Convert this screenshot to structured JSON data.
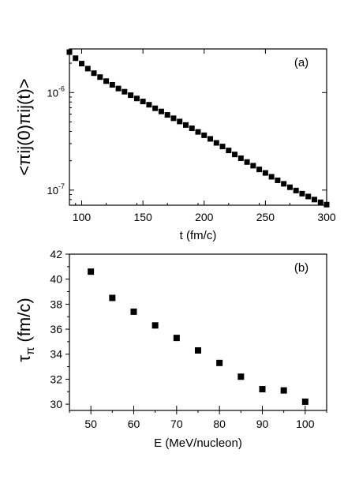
{
  "chart_data": [
    {
      "type": "scatter",
      "panel_label": "(a)",
      "xlabel": "t (fm/c)",
      "ylabel": "<πij(0)πij(t)>",
      "xlim": [
        90,
        300
      ],
      "ylim": [
        7e-08,
        2.8e-06
      ],
      "y_scale": "log",
      "x_ticks": [
        100,
        150,
        200,
        250,
        300
      ],
      "y_tick_labels": [
        {
          "value": 1e-06,
          "mantissa": "10",
          "exponent": "-6"
        },
        {
          "value": 1e-07,
          "mantissa": "10",
          "exponent": "-7"
        }
      ],
      "grid": false,
      "legend": "none",
      "marker_color": "#000000",
      "series": [
        {
          "x": [
            90,
            95,
            100,
            105,
            110,
            115,
            120,
            125,
            130,
            135,
            140,
            145,
            150,
            155,
            160,
            165,
            170,
            175,
            180,
            185,
            190,
            195,
            200,
            205,
            210,
            215,
            220,
            225,
            230,
            235,
            240,
            245,
            250,
            255,
            260,
            265,
            270,
            275,
            280,
            285,
            290,
            295,
            300
          ],
          "y": [
            2.6e-06,
            2.25e-06,
            1.98e-06,
            1.76e-06,
            1.58e-06,
            1.44e-06,
            1.31e-06,
            1.2e-06,
            1.1e-06,
            1.02e-06,
            9.4e-07,
            8.7e-07,
            8.1e-07,
            7.5e-07,
            6.9e-07,
            6.4e-07,
            5.9e-07,
            5.45e-07,
            5.05e-07,
            4.65e-07,
            4.3e-07,
            3.95e-07,
            3.65e-07,
            3.35e-07,
            3.05e-07,
            2.8e-07,
            2.55e-07,
            2.32e-07,
            2.12e-07,
            1.94e-07,
            1.78e-07,
            1.63e-07,
            1.5e-07,
            1.37e-07,
            1.26e-07,
            1.16e-07,
            1.07e-07,
            9.9e-08,
            9.2e-08,
            8.6e-08,
            8e-08,
            7.5e-08,
            7.1e-08
          ]
        }
      ]
    },
    {
      "type": "scatter",
      "panel_label": "(b)",
      "xlabel": "E (MeV/nucleon)",
      "ylabel": "τπ (fm/c)",
      "ylabel_symbol": "τ",
      "ylabel_subscript": "π",
      "ylabel_unit": "(fm/c)",
      "xlim": [
        45,
        105
      ],
      "ylim": [
        29.5,
        42
      ],
      "x_ticks": [
        50,
        60,
        70,
        80,
        90,
        100
      ],
      "y_ticks": [
        30,
        32,
        34,
        36,
        38,
        40,
        42
      ],
      "grid": false,
      "legend": "none",
      "marker_color": "#000000",
      "series": [
        {
          "x": [
            50,
            55,
            60,
            65,
            70,
            75,
            80,
            85,
            90,
            95,
            100
          ],
          "y": [
            40.6,
            38.5,
            37.4,
            36.3,
            35.3,
            34.3,
            33.3,
            32.2,
            31.2,
            31.1,
            30.2
          ]
        }
      ]
    }
  ]
}
